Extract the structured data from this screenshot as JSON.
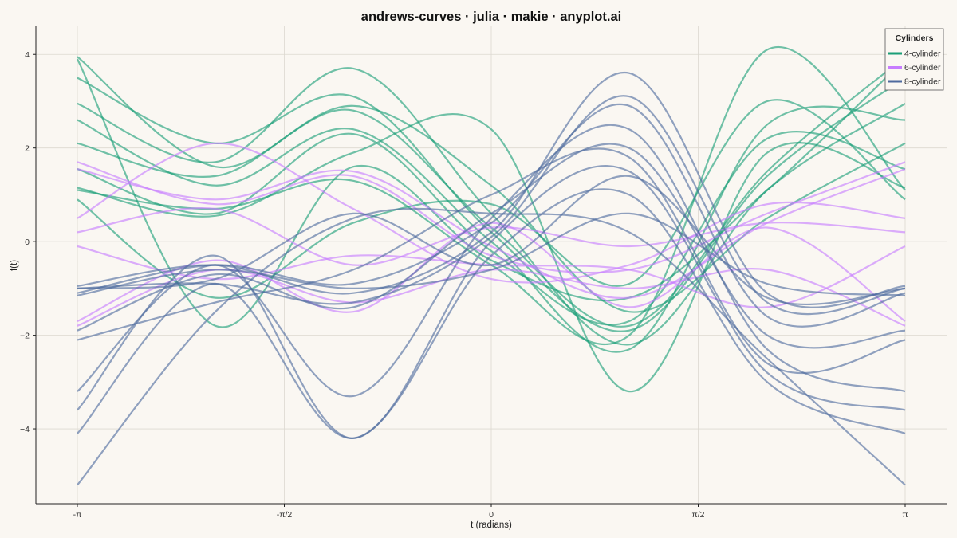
{
  "chart_data": {
    "type": "line",
    "title": "andrews-curves · julia · makie · anyplot.ai",
    "xlabel": "t (radians)",
    "ylabel": "f(t)",
    "xlim": [
      -3.14159,
      3.14159
    ],
    "ylim": [
      -5.6,
      4.6
    ],
    "x_ticks": [
      {
        "value": -3.14159,
        "label": "-π"
      },
      {
        "value": -1.5708,
        "label": "-π/2"
      },
      {
        "value": 0,
        "label": "0"
      },
      {
        "value": 1.5708,
        "label": "π/2"
      },
      {
        "value": 3.14159,
        "label": "π"
      }
    ],
    "y_ticks": [
      {
        "value": 4,
        "label": "4"
      },
      {
        "value": 2,
        "label": "2"
      },
      {
        "value": 0,
        "label": "0"
      },
      {
        "value": -2,
        "label": "−2"
      },
      {
        "value": -4,
        "label": "−4"
      }
    ],
    "grid": true,
    "legend": {
      "title": "Cylinders",
      "placement": "top-right",
      "entries": [
        {
          "label": "4-cylinder",
          "color": "#1A9E77"
        },
        {
          "label": "6-cylinder",
          "color": "#C77DFF"
        },
        {
          "label": "8-cylinder",
          "color": "#4E6A9E"
        }
      ]
    },
    "x_samples": [
      -3.14159,
      -2.0944,
      -1.0472,
      0,
      1.0472,
      2.0944,
      3.14159
    ],
    "series": [
      {
        "group": "4-cylinder",
        "values": [
          3.95,
          1.6,
          2.8,
          0.3,
          -1.8,
          1.5,
          3.95
        ]
      },
      {
        "group": "4-cylinder",
        "values": [
          3.5,
          2.1,
          3.1,
          0.2,
          -1.9,
          1.4,
          3.5
        ]
      },
      {
        "group": "4-cylinder",
        "values": [
          2.95,
          1.7,
          3.7,
          0.6,
          -2.2,
          1.1,
          2.95
        ]
      },
      {
        "group": "4-cylinder",
        "values": [
          2.6,
          1.2,
          2.4,
          0.0,
          -2.3,
          2.5,
          2.6
        ]
      },
      {
        "group": "4-cylinder",
        "values": [
          2.1,
          1.4,
          2.9,
          1.2,
          -1.5,
          0.5,
          2.1
        ]
      },
      {
        "group": "4-cylinder",
        "values": [
          1.55,
          0.6,
          2.3,
          -0.2,
          -1.7,
          2.2,
          1.55
        ]
      },
      {
        "group": "4-cylinder",
        "values": [
          1.15,
          0.55,
          1.9,
          2.4,
          -3.2,
          1.9,
          1.15
        ]
      },
      {
        "group": "4-cylinder",
        "values": [
          3.9,
          -1.8,
          1.6,
          -0.4,
          -1.2,
          1.1,
          3.9
        ]
      },
      {
        "group": "4-cylinder",
        "values": [
          1.1,
          0.7,
          1.3,
          -0.5,
          -2.0,
          4.1,
          1.1
        ]
      },
      {
        "group": "4-cylinder",
        "values": [
          0.9,
          -1.2,
          0.4,
          0.8,
          -0.9,
          3.0,
          0.9
        ]
      },
      {
        "group": "6-cylinder",
        "values": [
          1.7,
          0.8,
          1.4,
          -0.3,
          -0.6,
          0.6,
          1.7
        ]
      },
      {
        "group": "6-cylinder",
        "values": [
          1.55,
          0.9,
          1.5,
          -0.1,
          -1.2,
          0.4,
          1.55
        ]
      },
      {
        "group": "6-cylinder",
        "values": [
          0.5,
          2.1,
          0.7,
          -0.8,
          -0.5,
          0.8,
          0.5
        ]
      },
      {
        "group": "6-cylinder",
        "values": [
          0.2,
          0.7,
          -0.5,
          0.3,
          -0.1,
          0.4,
          0.2
        ]
      },
      {
        "group": "6-cylinder",
        "values": [
          -0.1,
          -0.8,
          -0.3,
          -0.5,
          -0.6,
          -1.4,
          -0.1
        ]
      },
      {
        "group": "6-cylinder",
        "values": [
          -1.8,
          -0.6,
          -1.3,
          -0.6,
          -1.0,
          -0.6,
          -1.8
        ]
      },
      {
        "group": "6-cylinder",
        "values": [
          -1.7,
          -0.4,
          -1.5,
          0.4,
          -1.4,
          0.3,
          -1.7
        ]
      },
      {
        "group": "8-cylinder",
        "values": [
          -0.95,
          -0.5,
          -1.1,
          0.2,
          3.6,
          -1.1,
          -0.95
        ]
      },
      {
        "group": "8-cylinder",
        "values": [
          -1.0,
          -0.9,
          -1.3,
          0.1,
          3.1,
          -1.3,
          -1.0
        ]
      },
      {
        "group": "8-cylinder",
        "values": [
          -1.1,
          -0.5,
          -0.9,
          0.4,
          2.9,
          -1.6,
          -1.1
        ]
      },
      {
        "group": "8-cylinder",
        "values": [
          -1.9,
          -0.7,
          -1.4,
          0.6,
          2.0,
          -2.0,
          -1.9
        ]
      },
      {
        "group": "8-cylinder",
        "values": [
          -2.1,
          -1.3,
          -0.6,
          1.0,
          1.8,
          -2.6,
          -2.1
        ]
      },
      {
        "group": "8-cylinder",
        "values": [
          -3.2,
          -0.5,
          -3.3,
          0.5,
          2.4,
          -2.3,
          -3.2
        ]
      },
      {
        "group": "8-cylinder",
        "values": [
          -3.6,
          -0.3,
          -4.2,
          0.0,
          1.5,
          -2.8,
          -3.6
        ]
      },
      {
        "group": "8-cylinder",
        "values": [
          -4.1,
          -0.9,
          -4.2,
          -0.3,
          1.0,
          -3.0,
          -4.1
        ]
      },
      {
        "group": "8-cylinder",
        "values": [
          -5.2,
          -1.5,
          0.5,
          0.6,
          0.2,
          -2.5,
          -5.2
        ]
      },
      {
        "group": "8-cylinder",
        "values": [
          -1.15,
          -0.6,
          -1.0,
          -0.6,
          0.6,
          -0.9,
          -1.15
        ]
      },
      {
        "group": "8-cylinder",
        "values": [
          -1.0,
          -0.8,
          0.6,
          -0.5,
          1.4,
          -1.2,
          -1.0
        ]
      }
    ]
  }
}
